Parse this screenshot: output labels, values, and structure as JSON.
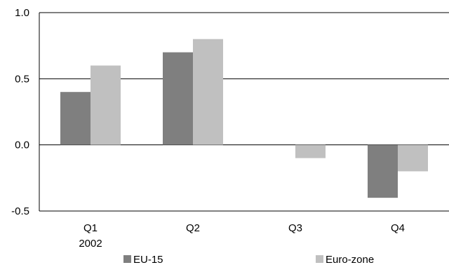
{
  "chart_data": {
    "type": "bar",
    "categories": [
      "Q1",
      "Q2",
      "Q3",
      "Q4"
    ],
    "category_sublabels": [
      "2002",
      "",
      "",
      ""
    ],
    "series": [
      {
        "name": "EU-15",
        "values": [
          0.4,
          0.7,
          0.0,
          -0.4
        ],
        "color": "#7f7f7f"
      },
      {
        "name": "Euro-zone",
        "values": [
          0.6,
          0.8,
          -0.1,
          -0.2
        ],
        "color": "#c0c0c0"
      }
    ],
    "yticks": [
      "1.0",
      "0.5",
      "0.0",
      "-0.5"
    ],
    "ylim": [
      -0.5,
      1.0
    ],
    "grid": true,
    "legend_position": "bottom",
    "title": "",
    "xlabel": "",
    "ylabel": ""
  }
}
